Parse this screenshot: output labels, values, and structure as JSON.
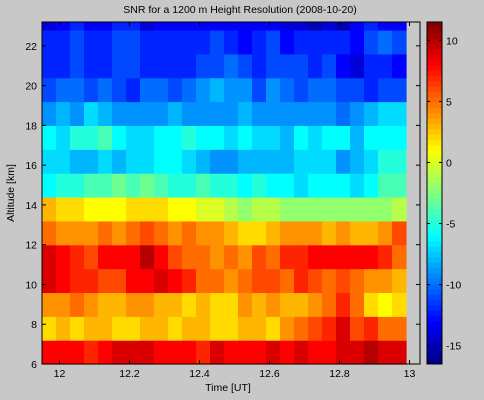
{
  "chart_data": {
    "type": "heatmap",
    "title": "SNR for a 1200 m Height Resolution (2008-10-20)",
    "xlabel": "Time [UT]",
    "ylabel": "Altitude [km]",
    "xlim": [
      11.95,
      13.03
    ],
    "ylim": [
      6,
      23.2
    ],
    "xticks": [
      12,
      12.2,
      12.4,
      12.6,
      12.8,
      13
    ],
    "xtick_labels": [
      "12",
      "12.2",
      "12.4",
      "12.6",
      "12.8",
      "13"
    ],
    "yticks": [
      6,
      8,
      10,
      12,
      14,
      16,
      18,
      20,
      22
    ],
    "ytick_labels": [
      "6",
      "8",
      "10",
      "12",
      "14",
      "16",
      "18",
      "20",
      "22"
    ],
    "colorbar": {
      "colormap": "jet",
      "range": [
        -16.5,
        11.5
      ],
      "ticks": [
        10,
        5,
        0,
        -5,
        -10,
        -15
      ],
      "tick_labels": [
        "10",
        "5",
        "0",
        "-5",
        "-10",
        "-15"
      ]
    },
    "x_start": 11.95,
    "x_step": 0.04,
    "y_start": 6,
    "y_step": 1.2,
    "z": [
      [
        8,
        8,
        8,
        7,
        8,
        9,
        9,
        9,
        8,
        8,
        8,
        7,
        9,
        8,
        8,
        8,
        9,
        8,
        9,
        8,
        8,
        9,
        9,
        10,
        9,
        9
      ],
      [
        2,
        3,
        2,
        3,
        3,
        2,
        2,
        3,
        3,
        2,
        3,
        3,
        2,
        2,
        3,
        3,
        2,
        4,
        5,
        6,
        7,
        9,
        6,
        7,
        5,
        5
      ],
      [
        4,
        4,
        5,
        4,
        3,
        3,
        4,
        4,
        3,
        3,
        2,
        3,
        2,
        2,
        4,
        3,
        4,
        3,
        3,
        4,
        5,
        7,
        5,
        2,
        1,
        2
      ],
      [
        9,
        8,
        7,
        7,
        6,
        6,
        8,
        8,
        9,
        8,
        7,
        5,
        5,
        4,
        5,
        6,
        6,
        5,
        7,
        6,
        5,
        6,
        5,
        4,
        4,
        3
      ],
      [
        9,
        8,
        7,
        6,
        8,
        8,
        8,
        10,
        8,
        6,
        5,
        5,
        4,
        5,
        4,
        6,
        5,
        7,
        7,
        8,
        8,
        8,
        8,
        8,
        7,
        5
      ],
      [
        5,
        4,
        4,
        4,
        5,
        4,
        5,
        6,
        5,
        4,
        5,
        4,
        4,
        3,
        2,
        2,
        3,
        4,
        4,
        4,
        3,
        4,
        3,
        3,
        4,
        6
      ],
      [
        3,
        2,
        2,
        1,
        1,
        1,
        2,
        2,
        2,
        1,
        1,
        0,
        0,
        -1,
        -2,
        -1,
        -1,
        -2,
        -2,
        -2,
        -2,
        -2,
        -2,
        -2,
        -2,
        -1
      ],
      [
        -6,
        -5,
        -5,
        -4,
        -4,
        -3,
        -4,
        -3,
        -4,
        -5,
        -5,
        -4,
        -5,
        -5,
        -6,
        -5,
        -6,
        -6,
        -7,
        -6,
        -6,
        -6,
        -7,
        -6,
        -4,
        -4
      ],
      [
        -7,
        -7,
        -8,
        -8,
        -7,
        -8,
        -7,
        -7,
        -6,
        -6,
        -7,
        -8,
        -9,
        -9,
        -8,
        -8,
        -8,
        -8,
        -7,
        -7,
        -7,
        -9,
        -8,
        -7,
        -5,
        -5
      ],
      [
        -6,
        -7,
        -5,
        -5,
        -4,
        -6,
        -7,
        -7,
        -6,
        -6,
        -5,
        -6,
        -6,
        -7,
        -6,
        -7,
        -7,
        -8,
        -6,
        -7,
        -6,
        -6,
        -8,
        -6,
        -6,
        -6
      ],
      [
        -9,
        -8,
        -9,
        -7,
        -8,
        -9,
        -9,
        -9,
        -9,
        -8,
        -9,
        -9,
        -9,
        -9,
        -8,
        -9,
        -9,
        -9,
        -9,
        -9,
        -9,
        -10,
        -9,
        -8,
        -7,
        -7
      ],
      [
        -11,
        -10,
        -10,
        -11,
        -10,
        -11,
        -12,
        -10,
        -10,
        -11,
        -10,
        -9,
        -8,
        -9,
        -9,
        -11,
        -9,
        -10,
        -11,
        -10,
        -10,
        -11,
        -11,
        -12,
        -11,
        -11
      ],
      [
        -12,
        -12,
        -11,
        -12,
        -12,
        -11,
        -11,
        -12,
        -12,
        -12,
        -12,
        -11,
        -11,
        -10,
        -11,
        -12,
        -11,
        -11,
        -11,
        -12,
        -11,
        -13,
        -14,
        -12,
        -12,
        -13
      ],
      [
        -12,
        -12,
        -11,
        -12,
        -12,
        -11,
        -11,
        -12,
        -12,
        -12,
        -12,
        -12,
        -11,
        -12,
        -13,
        -12,
        -11,
        -13,
        -12,
        -12,
        -12,
        -12,
        -13,
        -11,
        -10,
        -11
      ],
      [
        -14,
        -13,
        -12,
        -13,
        -13,
        -12,
        -12,
        -14,
        -13,
        -13,
        -13,
        -13,
        -13,
        -13,
        -13,
        -13,
        -13,
        -14,
        -14,
        -15,
        -14,
        -15,
        -13,
        -12,
        -13,
        -13
      ]
    ]
  }
}
